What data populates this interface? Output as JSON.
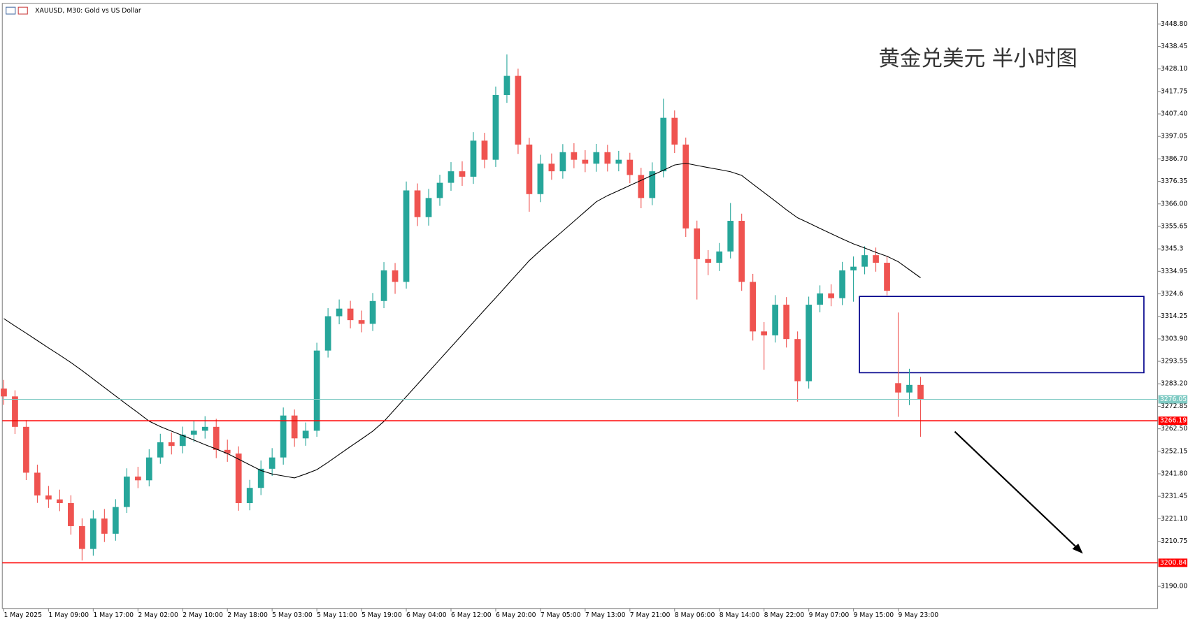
{
  "chart_data": {
    "type": "candlestick",
    "title": "XAUUSD, M30:  Gold vs US Dollar",
    "annotation": "黄金兑美元 半小时图",
    "categories": [
      "1 May 2025",
      null,
      null,
      null,
      "1 May 09:00",
      null,
      null,
      null,
      "1 May 17:00",
      null,
      null,
      null,
      "2 May 02:00",
      null,
      null,
      null,
      "2 May 10:00",
      null,
      null,
      null,
      "2 May 18:00",
      null,
      null,
      null,
      "5 May 03:00",
      null,
      null,
      null,
      "5 May 11:00",
      null,
      null,
      null,
      "5 May 19:00",
      null,
      null,
      null,
      "6 May 04:00",
      null,
      null,
      null,
      "6 May 12:00",
      null,
      null,
      null,
      "6 May 20:00",
      null,
      null,
      null,
      "7 May 05:00",
      null,
      null,
      null,
      "7 May 13:00",
      null,
      null,
      null,
      "7 May 21:00",
      null,
      null,
      null,
      "8 May 06:00",
      null,
      null,
      null,
      "8 May 14:00",
      null,
      null,
      null,
      "8 May 22:00",
      null,
      null,
      null,
      "9 May 07:00",
      null,
      null,
      null,
      "9 May 15:00",
      null,
      null,
      null,
      "9 May 23:00",
      null,
      null
    ],
    "open": [
      3281.0,
      3277.4,
      3263.4,
      3242.3,
      3231.8,
      3230.0,
      3228.3,
      3217.7,
      3207.2,
      3221.2,
      3214.2,
      3226.5,
      3240.5,
      3238.8,
      3249.3,
      3256.3,
      3254.6,
      3259.8,
      3261.6,
      3263.4,
      3252.8,
      3251.1,
      3228.3,
      3235.3,
      3244.1,
      3249.3,
      3268.6,
      3258.1,
      3261.6,
      3298.5,
      3314.3,
      3317.8,
      3312.5,
      3310.8,
      3321.3,
      3335.4,
      3330.1,
      3372.2,
      3359.9,
      3368.7,
      3375.7,
      3381.0,
      3378.5,
      3395.1,
      3386.3,
      3416.1,
      3424.9,
      3393.3,
      3370.5,
      3384.5,
      3381.0,
      3389.8,
      3386.3,
      3384.5,
      3389.8,
      3384.5,
      3386.3,
      3379.3,
      3368.7,
      3381.0,
      3405.6,
      3393.3,
      3354.7,
      3340.6,
      3338.9,
      3344.1,
      3358.2,
      3330.1,
      3307.3,
      3305.5,
      3319.6,
      3303.8,
      3284.4,
      3319.6,
      3324.8,
      3322.6,
      3335.4,
      3337.1,
      3342.4,
      3338.9,
      3283.5,
      3279.2,
      3282.7
    ],
    "high": [
      3285.0,
      3280.2,
      3266.5,
      3246.0,
      3236.2,
      3234.5,
      3231.9,
      3221.3,
      3225.0,
      3225.6,
      3230.1,
      3244.3,
      3245.0,
      3253.1,
      3260.2,
      3260.8,
      3263.5,
      3266.0,
      3268.3,
      3267.1,
      3257.5,
      3254.4,
      3239.0,
      3247.9,
      3253.6,
      3272.3,
      3271.4,
      3265.4,
      3302.1,
      3318.0,
      3322.0,
      3321.4,
      3316.9,
      3325.0,
      3339.2,
      3338.8,
      3376.3,
      3375.4,
      3372.9,
      3379.4,
      3385.2,
      3385.6,
      3399.0,
      3398.7,
      3420.0,
      3434.8,
      3428.2,
      3396.4,
      3388.6,
      3389.2,
      3393.5,
      3393.9,
      3390.7,
      3393.6,
      3393.2,
      3390.4,
      3389.5,
      3382.6,
      3385.1,
      3414.4,
      3409.0,
      3396.5,
      3358.3,
      3344.7,
      3348.0,
      3366.4,
      3361.5,
      3333.8,
      3311.6,
      3324.0,
      3323.1,
      3307.3,
      3323.3,
      3328.5,
      3329.0,
      3339.3,
      3341.8,
      3346.5,
      3345.9,
      3342.1,
      3316.0,
      3290.1,
      3286.4
    ],
    "low": [
      3273.5,
      3260.1,
      3238.9,
      3228.4,
      3226.1,
      3224.6,
      3213.8,
      3201.9,
      3204.1,
      3210.4,
      3211.0,
      3223.8,
      3235.2,
      3236.0,
      3246.4,
      3250.7,
      3251.2,
      3256.4,
      3258.0,
      3249.0,
      3247.3,
      3224.8,
      3225.0,
      3232.0,
      3240.8,
      3246.0,
      3254.2,
      3254.7,
      3258.8,
      3295.3,
      3310.6,
      3308.7,
      3306.9,
      3307.5,
      3318.0,
      3324.6,
      3327.0,
      3355.8,
      3356.0,
      3365.1,
      3372.0,
      3374.3,
      3375.2,
      3382.4,
      3383.0,
      3412.5,
      3389.0,
      3362.4,
      3366.8,
      3377.1,
      3377.6,
      3382.4,
      3380.6,
      3380.8,
      3380.9,
      3381.0,
      3375.5,
      3364.0,
      3365.4,
      3378.2,
      3389.4,
      3350.8,
      3322.0,
      3333.2,
      3335.1,
      3340.9,
      3326.0,
      3303.1,
      3289.7,
      3302.2,
      3299.9,
      3275.0,
      3281.0,
      3316.1,
      3318.9,
      3319.4,
      3321.0,
      3333.6,
      3334.8,
      3323.9,
      3268.0,
      3273.4,
      3258.8
    ],
    "close": [
      3277.4,
      3263.4,
      3242.3,
      3231.8,
      3230.0,
      3228.3,
      3217.7,
      3207.2,
      3221.2,
      3214.2,
      3226.5,
      3240.5,
      3238.8,
      3249.3,
      3256.3,
      3254.6,
      3259.8,
      3261.6,
      3263.4,
      3252.8,
      3251.1,
      3228.3,
      3235.3,
      3244.1,
      3249.3,
      3268.6,
      3258.1,
      3261.6,
      3298.5,
      3314.3,
      3317.8,
      3312.5,
      3310.8,
      3321.3,
      3335.4,
      3330.1,
      3372.2,
      3359.9,
      3368.7,
      3375.7,
      3381.0,
      3378.5,
      3395.1,
      3386.3,
      3416.1,
      3424.9,
      3393.3,
      3370.5,
      3384.5,
      3381.0,
      3389.8,
      3386.3,
      3384.5,
      3389.8,
      3384.5,
      3386.3,
      3379.3,
      3368.7,
      3381.0,
      3405.6,
      3393.3,
      3354.7,
      3340.6,
      3338.9,
      3344.1,
      3358.2,
      3330.1,
      3307.3,
      3305.5,
      3319.6,
      3303.8,
      3284.4,
      3319.6,
      3324.8,
      3322.6,
      3335.4,
      3337.1,
      3342.4,
      3338.9,
      3326.0,
      3279.2,
      3282.7,
      3276.05
    ],
    "up_color": "#26a69a",
    "down_color": "#ef5350",
    "ma": {
      "color": "#000000",
      "values": [
        3313.2,
        3309.8,
        3306.5,
        3303.1,
        3299.7,
        3296.4,
        3293.0,
        3289.3,
        3285.4,
        3281.5,
        3277.6,
        3273.7,
        3269.9,
        3266.0,
        3263.5,
        3261.4,
        3259.4,
        3257.3,
        3255.2,
        3253.2,
        3251.1,
        3248.5,
        3245.9,
        3243.3,
        3241.7,
        3240.8,
        3239.9,
        3241.7,
        3243.7,
        3247.1,
        3250.7,
        3254.3,
        3257.8,
        3261.4,
        3265.9,
        3271.6,
        3277.3,
        3283.0,
        3288.7,
        3294.4,
        3300.1,
        3305.8,
        3311.5,
        3317.2,
        3322.8,
        3328.5,
        3334.2,
        3339.9,
        3344.6,
        3349.1,
        3353.5,
        3358.0,
        3362.5,
        3367.0,
        3369.8,
        3372.1,
        3374.5,
        3376.8,
        3379.2,
        3381.5,
        3383.9,
        3384.7,
        3383.7,
        3382.7,
        3381.8,
        3380.8,
        3379.1,
        3375.1,
        3371.2,
        3367.3,
        3363.3,
        3359.6,
        3357.2,
        3354.7,
        3352.3,
        3349.9,
        3347.6,
        3345.7,
        3343.7,
        3341.9,
        3339.4,
        3335.7,
        3332.0
      ]
    },
    "levels": [
      {
        "value": 3276.05,
        "color": "#80cbc4"
      },
      {
        "value": 3266.19,
        "color": "#ff0000"
      },
      {
        "value": 3200.84,
        "color": "#ff0000"
      }
    ],
    "zone": {
      "range": [
        3288.3,
        3323.4
      ],
      "color": "#00008b"
    },
    "ylim": [
      3179.82,
      3458.28
    ],
    "yticks": [
      {
        "value": 3448.8,
        "label": "3448.80"
      },
      3438.45,
      {
        "value": 3428.1,
        "label": "3428.10"
      },
      3417.75,
      {
        "value": 3407.4,
        "label": "3407.40"
      },
      3397.05,
      {
        "value": 3386.7,
        "label": "3386.70"
      },
      3376.35,
      {
        "value": 3366,
        "label": "3366.00"
      },
      3355.65,
      3345.3,
      3334.95,
      3324.6,
      3314.25,
      {
        "value": 3303.9,
        "label": "3303.90"
      },
      3293.55,
      {
        "value": 3283.2,
        "label": "3283.20"
      },
      3272.85,
      {
        "value": 3262.5,
        "label": "3262.50"
      },
      3252.15,
      {
        "value": 3241.8,
        "label": "3241.80"
      },
      3231.45,
      {
        "value": 3221.1,
        "label": "3221.10"
      },
      3210.75,
      {
        "value": 3190,
        "label": "3190.00"
      }
    ]
  }
}
